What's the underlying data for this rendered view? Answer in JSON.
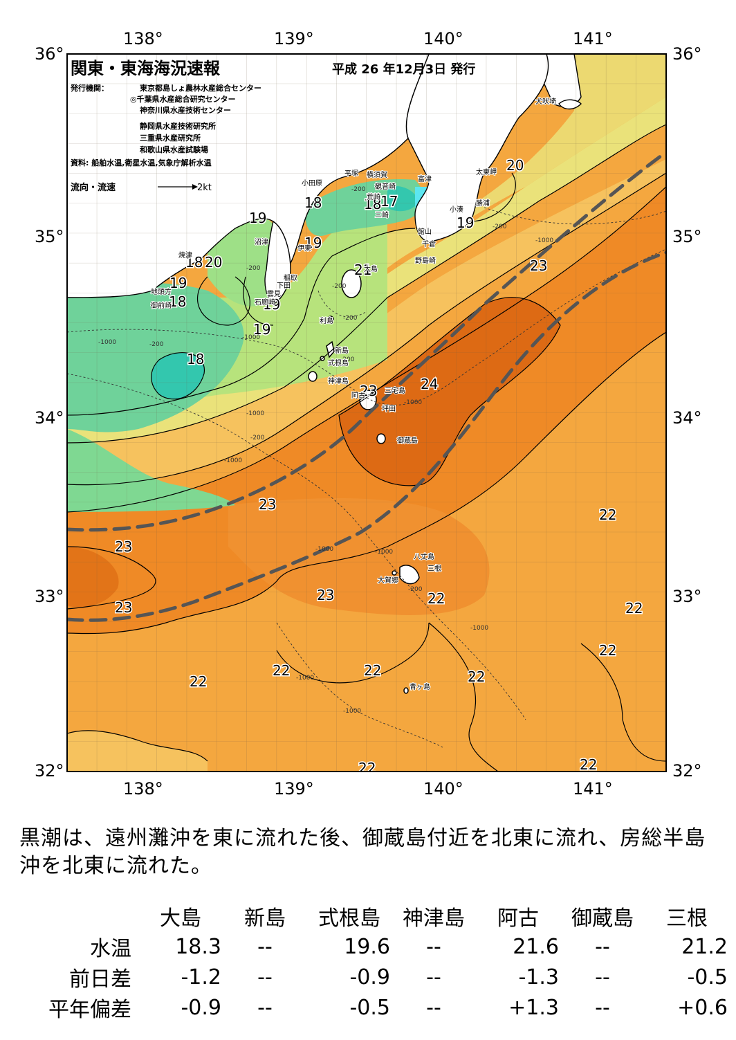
{
  "title": "関東・東海海況速報",
  "issue_date": "平成 26 年12月3日 発行",
  "issuers_label": "発行機関：",
  "issuers": [
    "東京都島しょ農林水産総合センター",
    "◎千葉県水産総合研究センター",
    "神奈川県水産技術センター",
    "静岡県水産技術研究所",
    "三重県水産研究所",
    "和歌山県水産試験場"
  ],
  "sources": "資料: 船舶水温,衛星水温,気象庁解析水温",
  "current_legend": "流向・流速",
  "current_scale": "2kt",
  "lon_labels": [
    "138°",
    "139°",
    "140°",
    "141°"
  ],
  "lat_labels": [
    "36°",
    "35°",
    "34°",
    "33°",
    "32°"
  ],
  "place_names": {
    "inubosaki": "犬吠埼",
    "taitomisaki": "太東岬",
    "katsuura": "勝浦",
    "kominato": "小湊",
    "tomitsu": "富津",
    "yokosuka": "横須賀",
    "kannonzaki": "観音崎",
    "arasaki": "荒崎",
    "misaki": "三崎",
    "hiratsuka": "平塚",
    "odawara": "小田原",
    "tateyama": "館山",
    "chikura": "千倉",
    "nojimazaki": "野島崎",
    "numazu": "沼津",
    "ito": "伊東",
    "inatori": "稲取",
    "shimoda": "下田",
    "kumomi": "雲見",
    "irozaki": "石廊崎",
    "yaizu": "焼津",
    "jitokata": "地頭方",
    "omaezaki": "御前崎",
    "oshima": "大島",
    "toshima": "利島",
    "niijima": "新島",
    "shikinejima": "式根島",
    "kozushima": "神津島",
    "miyakejima": "三宅島",
    "ako": "阿古",
    "tsubota": "坪田",
    "mikurajima": "御蔵島",
    "hachijojima": "八丈島",
    "mine": "三根",
    "okago": "大賀郷",
    "aogashima": "青ヶ島"
  },
  "isotherm_labels": [
    "20",
    "19",
    "19",
    "18",
    "17",
    "18",
    "19",
    "19",
    "18",
    "20",
    "19",
    "18",
    "19",
    "18",
    "21",
    "23",
    "23",
    "24",
    "23",
    "23",
    "23",
    "23",
    "22",
    "22",
    "22",
    "22",
    "22",
    "22",
    "22",
    "22",
    "22",
    "22"
  ],
  "depth_labels": [
    "-200",
    "-200",
    "-1000",
    "-200",
    "-1000",
    "-200",
    "-200",
    "-200",
    "-1000",
    "-1000",
    "-200",
    "-1000",
    "-1000",
    "-1000",
    "-1000",
    "-200",
    "-1000",
    "-1000",
    "-200",
    "-1000"
  ],
  "summary": "黒潮は、遠州灘沖を東に流れた後、御蔵島付近を北東に流れ、房総半島沖を北東に流れた。",
  "table": {
    "columns": [
      "大島",
      "新島",
      "式根島",
      "神津島",
      "阿古",
      "御蔵島",
      "三根"
    ],
    "rows": [
      {
        "label": "水温",
        "values": [
          "18.3",
          "--",
          "19.6",
          "--",
          "21.6",
          "--",
          "21.2"
        ]
      },
      {
        "label": "前日差",
        "values": [
          "-1.2",
          "--",
          "-0.9",
          "--",
          "-1.3",
          "--",
          "-0.5"
        ]
      },
      {
        "label": "平年偏差",
        "values": [
          "-0.9",
          "--",
          "-0.5",
          "--",
          "+1.3",
          "--",
          "+0.6"
        ]
      }
    ]
  },
  "colors": {
    "temp_17": "#33c7ae",
    "temp_18": "#6fd29a",
    "temp_19": "#b7e37c",
    "temp_20": "#eae27a",
    "temp_21": "#f6c25e",
    "temp_22": "#f4a73f",
    "temp_23": "#ef8a26",
    "temp_24": "#dd6a14",
    "kuroshio_axis": "#555555"
  }
}
